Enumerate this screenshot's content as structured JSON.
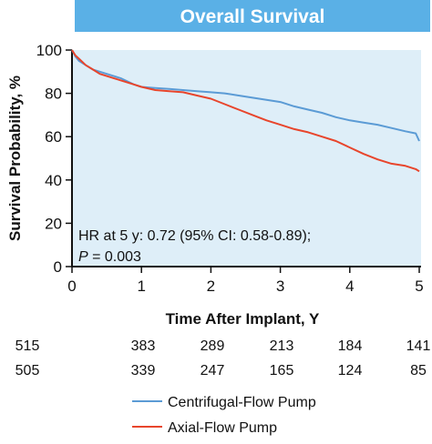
{
  "chart_data": {
    "type": "line",
    "title": "Overall Survival",
    "xlabel": "Time After Implant, Y",
    "ylabel": "Survival Probability, %",
    "xlim": [
      0,
      5
    ],
    "ylim": [
      0,
      100
    ],
    "xticks": [
      0,
      1,
      2,
      3,
      4,
      5
    ],
    "yticks": [
      0,
      20,
      40,
      60,
      80,
      100
    ],
    "grid": false,
    "legend_position": "bottom",
    "annotation": {
      "line1": "HR at 5 y: 0.72 (95% CI: 0.58-0.89);",
      "line2_italic": "P",
      "line2_rest": " = 0.003"
    },
    "series": [
      {
        "name": "Centrifugal-Flow Pump",
        "color": "#5b9bd5",
        "points": [
          [
            0,
            100
          ],
          [
            0.05,
            97
          ],
          [
            0.1,
            95
          ],
          [
            0.2,
            93
          ],
          [
            0.3,
            91
          ],
          [
            0.4,
            90
          ],
          [
            0.5,
            89
          ],
          [
            0.6,
            88
          ],
          [
            0.7,
            87
          ],
          [
            0.8,
            85.5
          ],
          [
            0.9,
            84
          ],
          [
            1.0,
            83
          ],
          [
            1.2,
            82.5
          ],
          [
            1.4,
            82
          ],
          [
            1.6,
            81.5
          ],
          [
            1.8,
            81
          ],
          [
            2.0,
            80.5
          ],
          [
            2.2,
            80
          ],
          [
            2.4,
            79
          ],
          [
            2.6,
            78
          ],
          [
            2.8,
            77
          ],
          [
            3.0,
            76
          ],
          [
            3.2,
            74
          ],
          [
            3.4,
            72.5
          ],
          [
            3.6,
            71
          ],
          [
            3.8,
            69
          ],
          [
            4.0,
            67.5
          ],
          [
            4.2,
            66.5
          ],
          [
            4.4,
            65.5
          ],
          [
            4.6,
            64
          ],
          [
            4.8,
            62.5
          ],
          [
            4.95,
            61.5
          ],
          [
            5.0,
            58
          ]
        ],
        "risk_counts": [
          515,
          383,
          289,
          213,
          184,
          141
        ]
      },
      {
        "name": "Axial-Flow Pump",
        "color": "#e8452c",
        "points": [
          [
            0,
            100
          ],
          [
            0.05,
            97.5
          ],
          [
            0.1,
            96
          ],
          [
            0.2,
            93
          ],
          [
            0.3,
            91
          ],
          [
            0.4,
            89
          ],
          [
            0.5,
            88
          ],
          [
            0.6,
            87
          ],
          [
            0.7,
            86
          ],
          [
            0.8,
            85
          ],
          [
            0.9,
            84
          ],
          [
            1.0,
            83
          ],
          [
            1.2,
            81.5
          ],
          [
            1.4,
            81
          ],
          [
            1.6,
            80.5
          ],
          [
            1.8,
            79
          ],
          [
            2.0,
            77.5
          ],
          [
            2.2,
            75
          ],
          [
            2.4,
            72.5
          ],
          [
            2.6,
            70
          ],
          [
            2.8,
            67.5
          ],
          [
            3.0,
            65.5
          ],
          [
            3.2,
            63.5
          ],
          [
            3.4,
            62
          ],
          [
            3.6,
            60
          ],
          [
            3.8,
            58
          ],
          [
            4.0,
            55
          ],
          [
            4.2,
            52
          ],
          [
            4.4,
            49.5
          ],
          [
            4.6,
            47.5
          ],
          [
            4.8,
            46.5
          ],
          [
            4.95,
            45
          ],
          [
            5.0,
            44
          ]
        ],
        "risk_counts": [
          505,
          339,
          247,
          165,
          124,
          85
        ]
      }
    ]
  }
}
